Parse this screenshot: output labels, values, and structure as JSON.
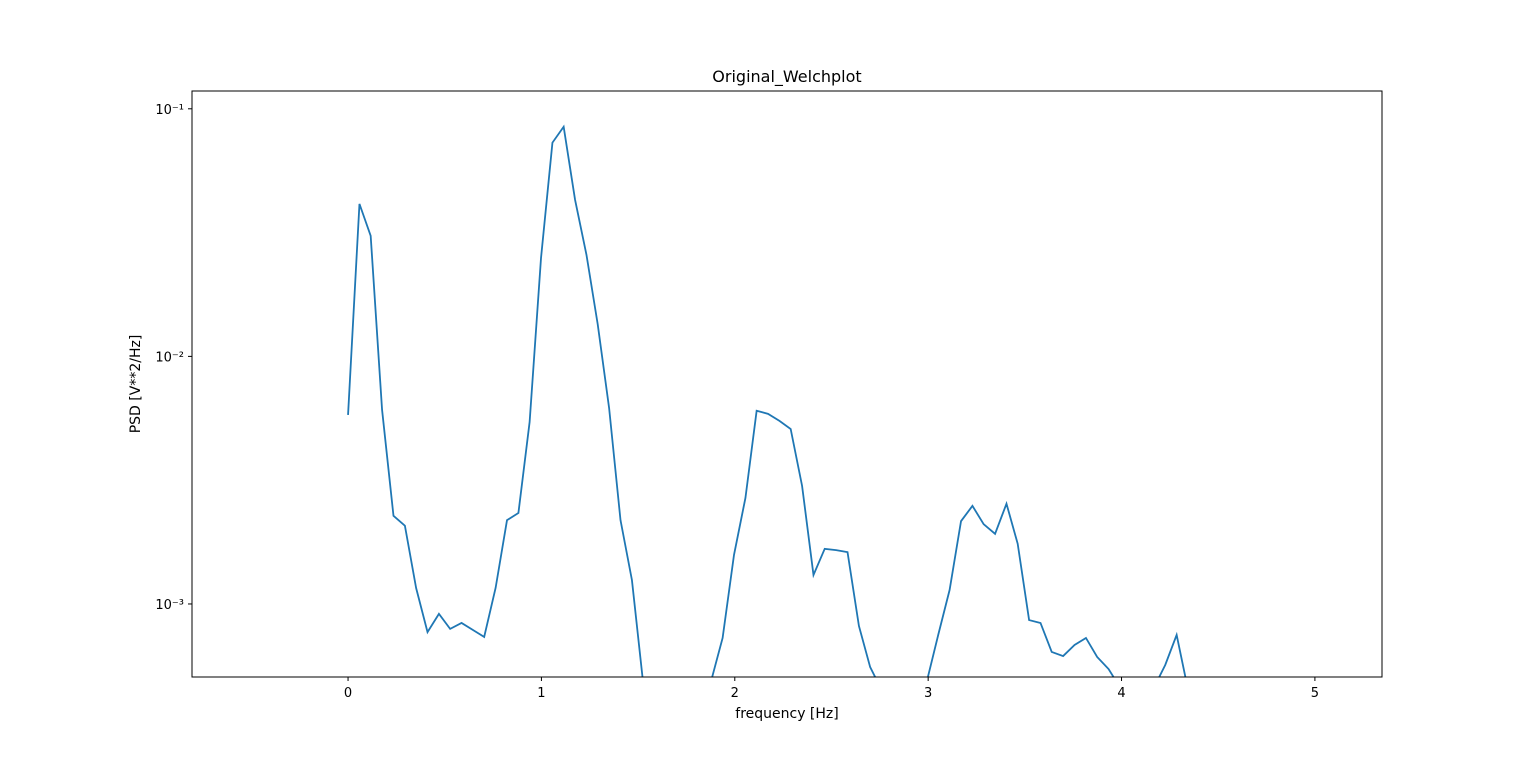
{
  "chart_data": {
    "type": "line",
    "title": "Original_Welchplot",
    "x_label": "frequency [Hz]",
    "y_label": "PSD [V**2/Hz]",
    "yscale": "log",
    "grid": false,
    "xlim": [
      -0.807,
      5.347
    ],
    "ylim": [
      0.000507,
      0.118
    ],
    "xticks": [
      0,
      1,
      2,
      3,
      4,
      5
    ],
    "yticks": [
      {
        "value": 0.001,
        "label": "10⁻³"
      },
      {
        "value": 0.01,
        "label": "10⁻²"
      },
      {
        "value": 0.1,
        "label": "10⁻¹"
      }
    ],
    "x": [
      0,
      0.059,
      0.117,
      0.176,
      0.235,
      0.294,
      0.352,
      0.411,
      0.47,
      0.528,
      0.587,
      0.646,
      0.704,
      0.763,
      0.822,
      0.881,
      0.939,
      0.998,
      1.057,
      1.115,
      1.174,
      1.233,
      1.291,
      1.35,
      1.409,
      1.468,
      1.526,
      1.585,
      1.644,
      1.702,
      1.761,
      1.82,
      1.878,
      1.937,
      1.996,
      2.055,
      2.113,
      2.172,
      2.231,
      2.289,
      2.348,
      2.407,
      2.465,
      2.524,
      2.583,
      2.642,
      2.7,
      2.759,
      2.818,
      2.876,
      2.935,
      2.994,
      3.052,
      3.111,
      3.17,
      3.229,
      3.287,
      3.346,
      3.405,
      3.463,
      3.522,
      3.581,
      3.639,
      3.698,
      3.757,
      3.816,
      3.874,
      3.933,
      3.992,
      4.05,
      4.109,
      4.168,
      4.226,
      4.285,
      4.344
    ],
    "series": [
      {
        "color": "#1f77b4",
        "values": [
          0.0058,
          0.0413,
          0.0307,
          0.00608,
          0.00227,
          0.00207,
          0.00116,
          0.00077,
          0.000912,
          0.000793,
          0.000838,
          0.000785,
          0.000736,
          0.00116,
          0.00218,
          0.00233,
          0.00543,
          0.025,
          0.073,
          0.0846,
          0.0429,
          0.0257,
          0.0135,
          0.00619,
          0.00218,
          0.00125,
          0.00048,
          null,
          null,
          null,
          null,
          null,
          0.00049,
          0.000729,
          0.00158,
          0.00268,
          0.00603,
          0.00586,
          0.00549,
          0.00509,
          0.003,
          0.00131,
          0.00167,
          0.00165,
          0.00162,
          0.000815,
          0.000556,
          0.00045,
          null,
          null,
          null,
          0.00049,
          0.00075,
          0.00114,
          0.00216,
          0.00249,
          0.0021,
          0.00192,
          0.00254,
          0.00175,
          0.000861,
          0.000838,
          0.00064,
          0.000616,
          0.000683,
          0.000729,
          0.000611,
          0.000546,
          0.00046,
          null,
          null,
          0.00046,
          0.000567,
          0.00075,
          0.00045
        ]
      }
    ]
  }
}
